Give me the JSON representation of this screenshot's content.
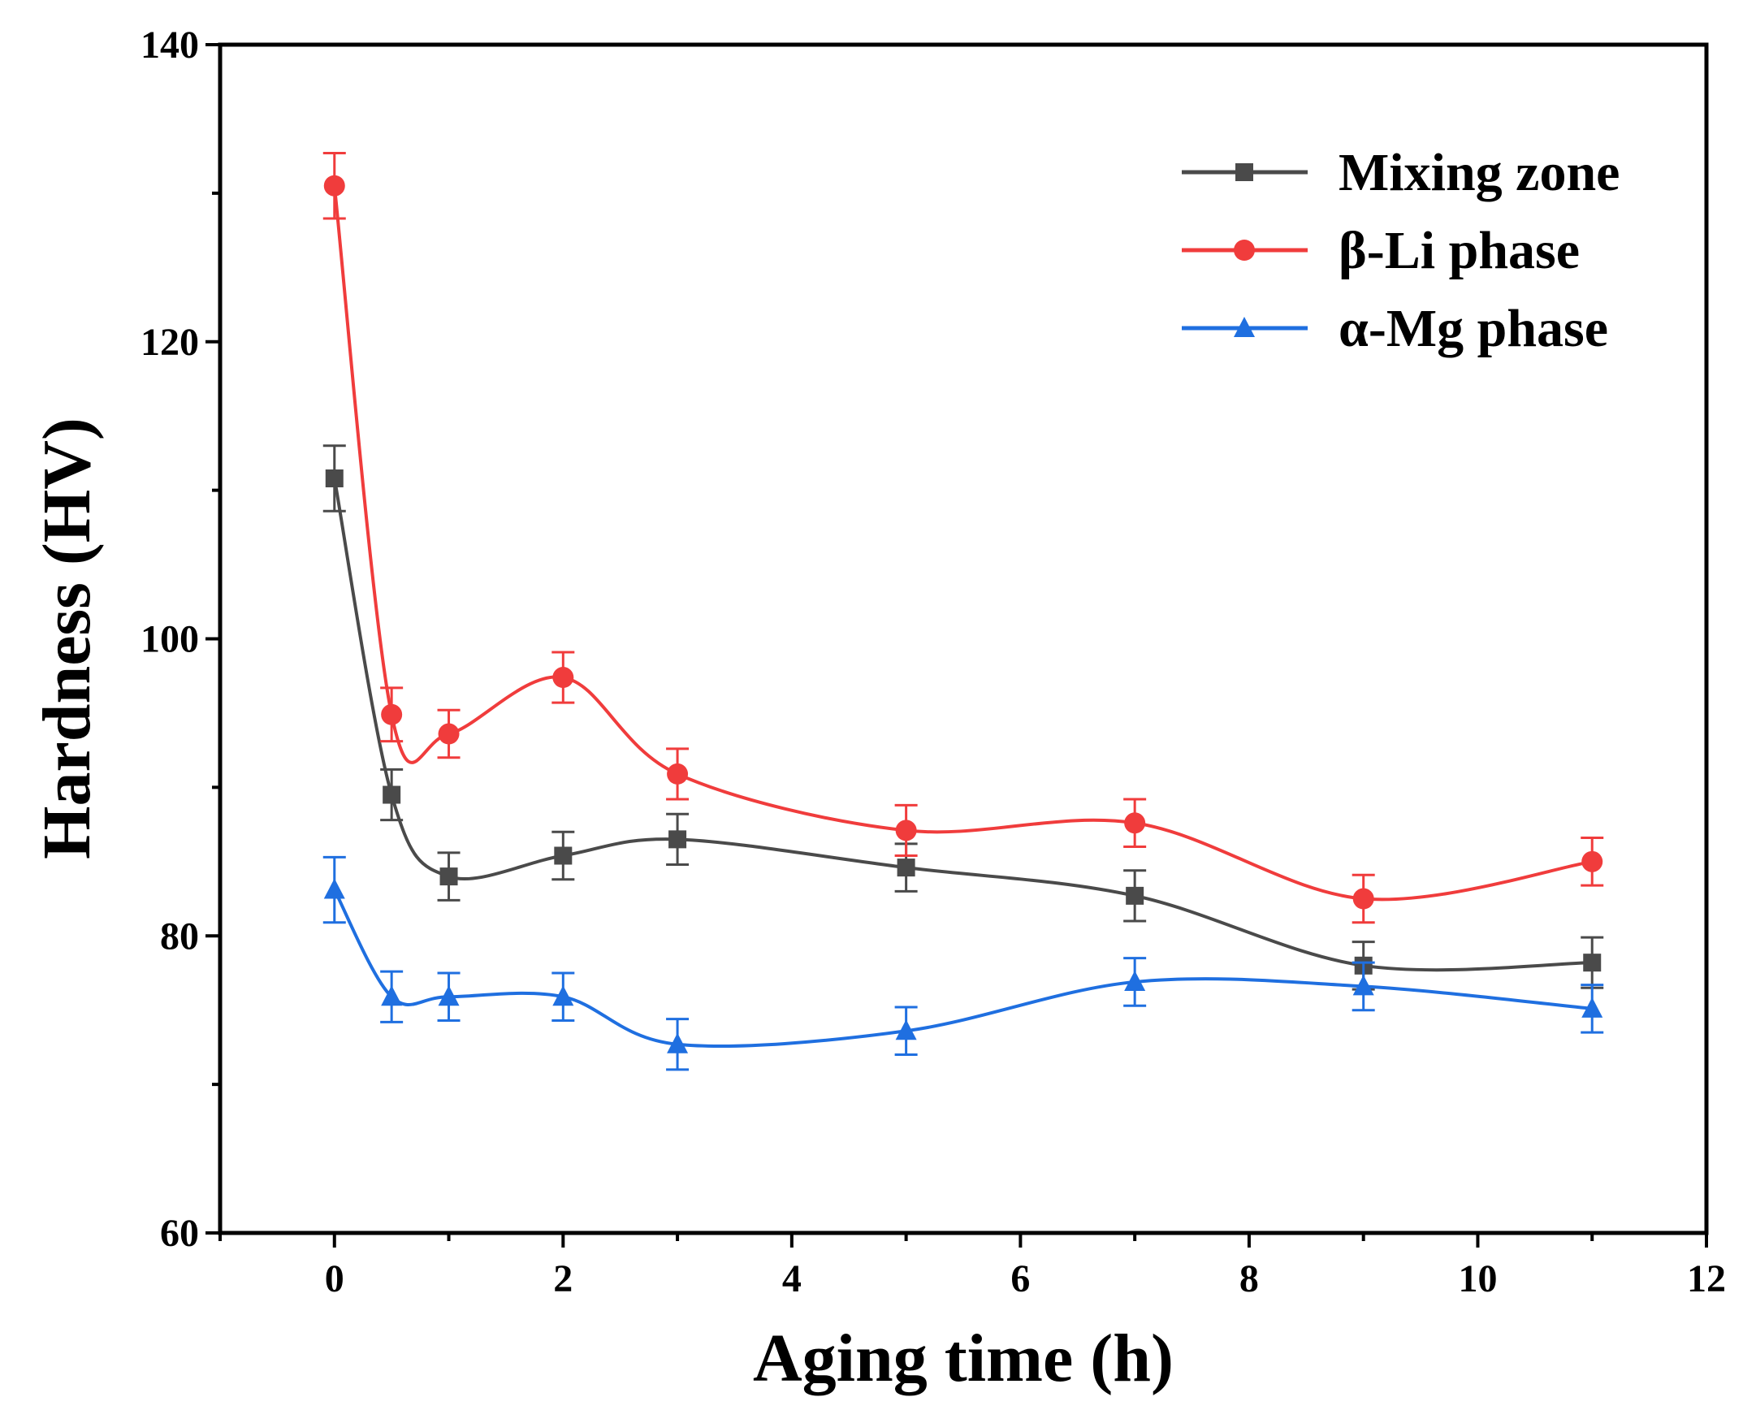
{
  "chart_data": {
    "type": "line",
    "title": "",
    "xlabel": "Aging time (h)",
    "ylabel": "Hardness (HV)",
    "xlim": [
      -1,
      12
    ],
    "ylim": [
      60,
      140
    ],
    "xticks": [
      0,
      2,
      4,
      6,
      8,
      10,
      12
    ],
    "yticks": [
      60,
      80,
      100,
      120,
      140
    ],
    "grid": false,
    "legend_position": "top-right",
    "x": [
      0,
      0.5,
      1,
      2,
      3,
      5,
      7,
      9,
      11
    ],
    "series": [
      {
        "name": "Mixing zone",
        "color": "#4a4a4a",
        "marker": "square",
        "values": [
          110.8,
          89.5,
          84.0,
          85.4,
          86.5,
          84.6,
          82.7,
          78.0,
          78.2
        ],
        "errors": [
          2.2,
          1.7,
          1.6,
          1.6,
          1.7,
          1.6,
          1.7,
          1.6,
          1.7
        ]
      },
      {
        "name": "β-Li phase",
        "color": "#f03c3c",
        "marker": "circle",
        "values": [
          130.5,
          94.9,
          93.6,
          97.4,
          90.9,
          87.1,
          87.6,
          82.5,
          85.0
        ],
        "errors": [
          2.2,
          1.8,
          1.6,
          1.7,
          1.7,
          1.7,
          1.6,
          1.6,
          1.6
        ]
      },
      {
        "name": "α-Mg phase",
        "color": "#1f6fe0",
        "marker": "triangle",
        "values": [
          83.1,
          75.9,
          75.9,
          75.9,
          72.7,
          73.6,
          76.9,
          76.6,
          75.1
        ],
        "errors": [
          2.2,
          1.7,
          1.6,
          1.6,
          1.7,
          1.6,
          1.6,
          1.6,
          1.6
        ]
      }
    ]
  }
}
